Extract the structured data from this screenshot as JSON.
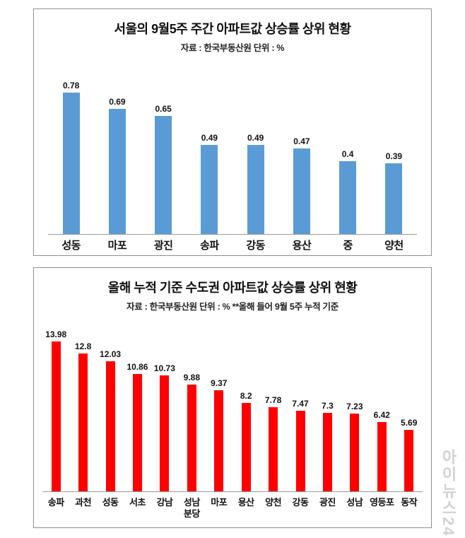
{
  "watermark": "아이뉴스24",
  "chart_data": [
    {
      "type": "bar",
      "title": "서울의 9월5주 주간 아파트값 상승률 상위 현황",
      "subtitle": "자료 : 한국부동산원  단위 : %",
      "categories": [
        "성동",
        "마포",
        "광진",
        "송파",
        "강동",
        "용산",
        "중",
        "양천"
      ],
      "values": [
        0.78,
        0.69,
        0.65,
        0.49,
        0.49,
        0.47,
        0.4,
        0.39
      ],
      "value_labels": [
        "0.78",
        "0.69",
        "0.65",
        "0.49",
        "0.49",
        "0.47",
        "0.4",
        "0.39"
      ],
      "xlabel": "",
      "ylabel": "",
      "ylim": [
        0,
        0.9
      ],
      "grid": false,
      "legend": false,
      "bar_color": "#5B9BD5"
    },
    {
      "type": "bar",
      "title": "올해 누적 기준 수도권 아파트값 상승률 상위 현황",
      "subtitle": "자료 : 한국부동산원  단위 : %  **올해 들어 9월 5주 누적 기준",
      "categories": [
        "송파",
        "과천",
        "성동",
        "서초",
        "강남",
        "성남\n분당",
        "마포",
        "용산",
        "양천",
        "강동",
        "광진",
        "성남",
        "영등포",
        "동작"
      ],
      "values": [
        13.98,
        12.8,
        12.03,
        10.86,
        10.73,
        9.88,
        9.37,
        8.2,
        7.78,
        7.47,
        7.3,
        7.23,
        6.42,
        5.69
      ],
      "value_labels": [
        "13.98",
        "12.8",
        "12.03",
        "10.86",
        "10.73",
        "9.88",
        "9.37",
        "8.2",
        "7.78",
        "7.47",
        "7.3",
        "7.23",
        "6.42",
        "5.69"
      ],
      "xlabel": "",
      "ylabel": "",
      "ylim": [
        0,
        15
      ],
      "grid": false,
      "legend": false,
      "bar_color": "#FF0000"
    }
  ]
}
